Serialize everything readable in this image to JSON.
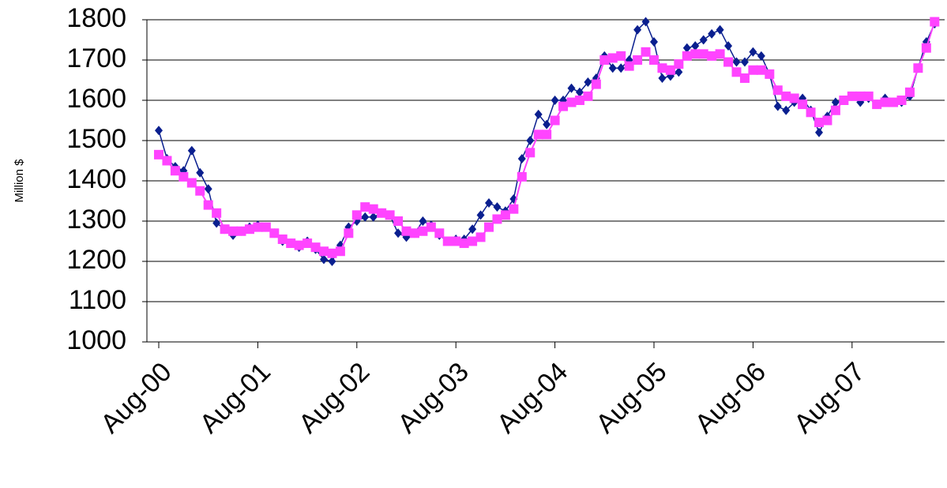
{
  "chart_data": {
    "type": "line",
    "y_label": "Million $",
    "categories": [
      "Aug-00",
      null,
      null,
      null,
      null,
      null,
      null,
      null,
      null,
      null,
      null,
      null,
      "Aug-01",
      null,
      null,
      null,
      null,
      null,
      null,
      null,
      null,
      null,
      null,
      null,
      "Aug-02",
      null,
      null,
      null,
      null,
      null,
      null,
      null,
      null,
      null,
      null,
      null,
      "Aug-03",
      null,
      null,
      null,
      null,
      null,
      null,
      null,
      null,
      null,
      null,
      null,
      "Aug-04",
      null,
      null,
      null,
      null,
      null,
      null,
      null,
      null,
      null,
      null,
      null,
      "Aug-05",
      null,
      null,
      null,
      null,
      null,
      null,
      null,
      null,
      null,
      null,
      null,
      "Aug-06",
      null,
      null,
      null,
      null,
      null,
      null,
      null,
      null,
      null,
      null,
      null,
      "Aug-07",
      null,
      null,
      null,
      null,
      null,
      null,
      null,
      null,
      null,
      null
    ],
    "series": [
      {
        "color": "#0a1f8f",
        "marker": "diamond",
        "values": [
          1525,
          1455,
          1435,
          1425,
          1475,
          1420,
          1380,
          1295,
          1280,
          1265,
          1275,
          1285,
          1290,
          1285,
          1270,
          1250,
          1245,
          1235,
          1250,
          1230,
          1205,
          1200,
          1240,
          1285,
          1300,
          1310,
          1310,
          1320,
          1315,
          1270,
          1260,
          1270,
          1300,
          1290,
          1265,
          1250,
          1255,
          1255,
          1280,
          1315,
          1345,
          1335,
          1325,
          1355,
          1455,
          1500,
          1565,
          1540,
          1600,
          1600,
          1630,
          1620,
          1645,
          1655,
          1710,
          1680,
          1680,
          1700,
          1775,
          1795,
          1745,
          1655,
          1660,
          1670,
          1730,
          1735,
          1750,
          1765,
          1775,
          1735,
          1695,
          1695,
          1720,
          1710,
          1665,
          1585,
          1575,
          1595,
          1605,
          1575,
          1520,
          1560,
          1595,
          1600,
          1610,
          1595,
          1605,
          1590,
          1605,
          1595,
          1595,
          1610,
          1680,
          1745,
          1790
        ]
      },
      {
        "color": "#ff44ff",
        "marker": "square",
        "values": [
          1465,
          1450,
          1425,
          1410,
          1395,
          1375,
          1340,
          1320,
          1280,
          1275,
          1275,
          1280,
          1285,
          1285,
          1270,
          1255,
          1245,
          1240,
          1245,
          1235,
          1225,
          1220,
          1225,
          1270,
          1315,
          1335,
          1330,
          1320,
          1315,
          1300,
          1275,
          1270,
          1275,
          1285,
          1270,
          1250,
          1250,
          1245,
          1250,
          1260,
          1285,
          1305,
          1315,
          1330,
          1410,
          1470,
          1515,
          1515,
          1550,
          1585,
          1595,
          1600,
          1610,
          1640,
          1700,
          1705,
          1710,
          1685,
          1700,
          1720,
          1700,
          1680,
          1675,
          1690,
          1710,
          1715,
          1715,
          1710,
          1715,
          1695,
          1670,
          1655,
          1675,
          1675,
          1665,
          1625,
          1610,
          1605,
          1590,
          1570,
          1545,
          1550,
          1575,
          1600,
          1610,
          1610,
          1610,
          1590,
          1595,
          1595,
          1600,
          1620,
          1680,
          1730,
          1795
        ]
      }
    ],
    "ylim": [
      1000,
      1800
    ],
    "yticks": [
      1000,
      1100,
      1200,
      1300,
      1400,
      1500,
      1600,
      1700,
      1800
    ],
    "grid": true
  }
}
